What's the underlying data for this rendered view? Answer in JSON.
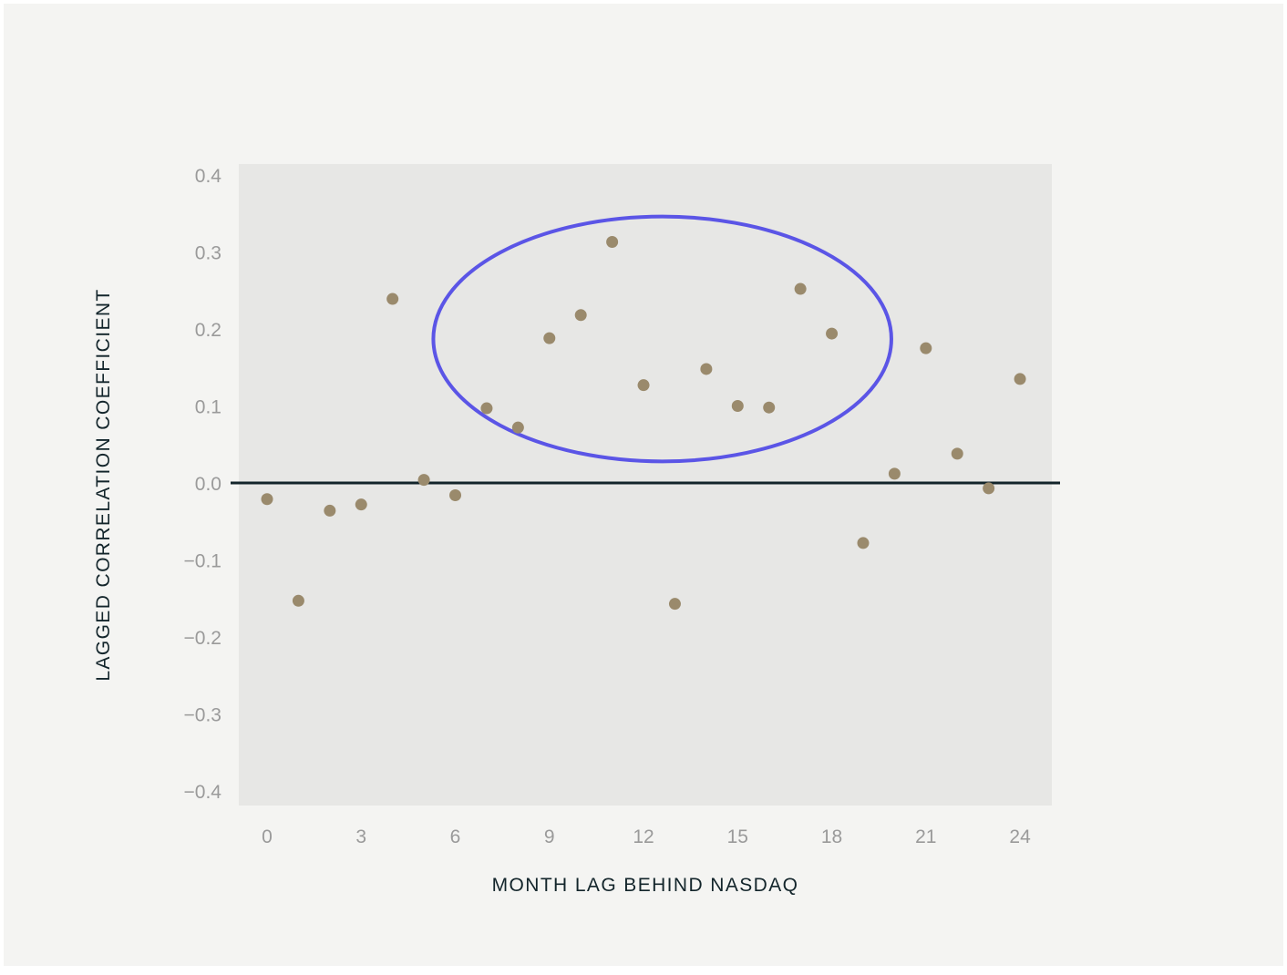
{
  "chart_data": {
    "type": "scatter",
    "title": "",
    "xlabel": "MONTH LAG BEHIND NASDAQ",
    "ylabel": "LAGGED CORRELATION COEFFICIENT",
    "xlim": [
      -0.4,
      24.6
    ],
    "ylim": [
      -0.4,
      0.4
    ],
    "xticks": [
      0,
      3,
      6,
      9,
      12,
      15,
      18,
      21,
      24
    ],
    "yticks": [
      0.4,
      0.3,
      0.2,
      0.1,
      0.0,
      -0.1,
      -0.2,
      -0.3,
      -0.4
    ],
    "ytick_labels": [
      "0.4",
      "0.3",
      "0.2",
      "0.1",
      "0.0",
      "−0.1",
      "−0.2",
      "−0.3",
      "−0.4"
    ],
    "zero_line": 0,
    "grid": false,
    "legend": "none",
    "points": [
      {
        "x": 0,
        "y": -0.021
      },
      {
        "x": 1,
        "y": -0.153
      },
      {
        "x": 2,
        "y": -0.036
      },
      {
        "x": 3,
        "y": -0.028
      },
      {
        "x": 4,
        "y": 0.239
      },
      {
        "x": 5,
        "y": 0.004
      },
      {
        "x": 6,
        "y": -0.016
      },
      {
        "x": 7,
        "y": 0.097
      },
      {
        "x": 8,
        "y": 0.072
      },
      {
        "x": 9,
        "y": 0.188
      },
      {
        "x": 10,
        "y": 0.218
      },
      {
        "x": 11,
        "y": 0.313
      },
      {
        "x": 12,
        "y": 0.127
      },
      {
        "x": 13,
        "y": -0.157
      },
      {
        "x": 14,
        "y": 0.148
      },
      {
        "x": 15,
        "y": 0.1
      },
      {
        "x": 16,
        "y": 0.098
      },
      {
        "x": 17,
        "y": 0.252
      },
      {
        "x": 18,
        "y": 0.194
      },
      {
        "x": 19,
        "y": -0.078
      },
      {
        "x": 20,
        "y": 0.012
      },
      {
        "x": 21,
        "y": 0.175
      },
      {
        "x": 22,
        "y": 0.038
      },
      {
        "x": 23,
        "y": -0.007
      },
      {
        "x": 24,
        "y": 0.135
      }
    ],
    "annotation": {
      "type": "ellipse",
      "center": {
        "x": 12.6,
        "y": 0.187
      },
      "rx_data": 7.3,
      "ry_data": 0.159
    }
  },
  "colors": {
    "background": "#f4f4f2",
    "plot_area": "#e7e7e5",
    "point": "#9a8a6c",
    "zero_line": "#13252b",
    "ellipse": "#5b55e6",
    "tick_text": "#9a9a9a",
    "axis_title": "#13252b"
  }
}
